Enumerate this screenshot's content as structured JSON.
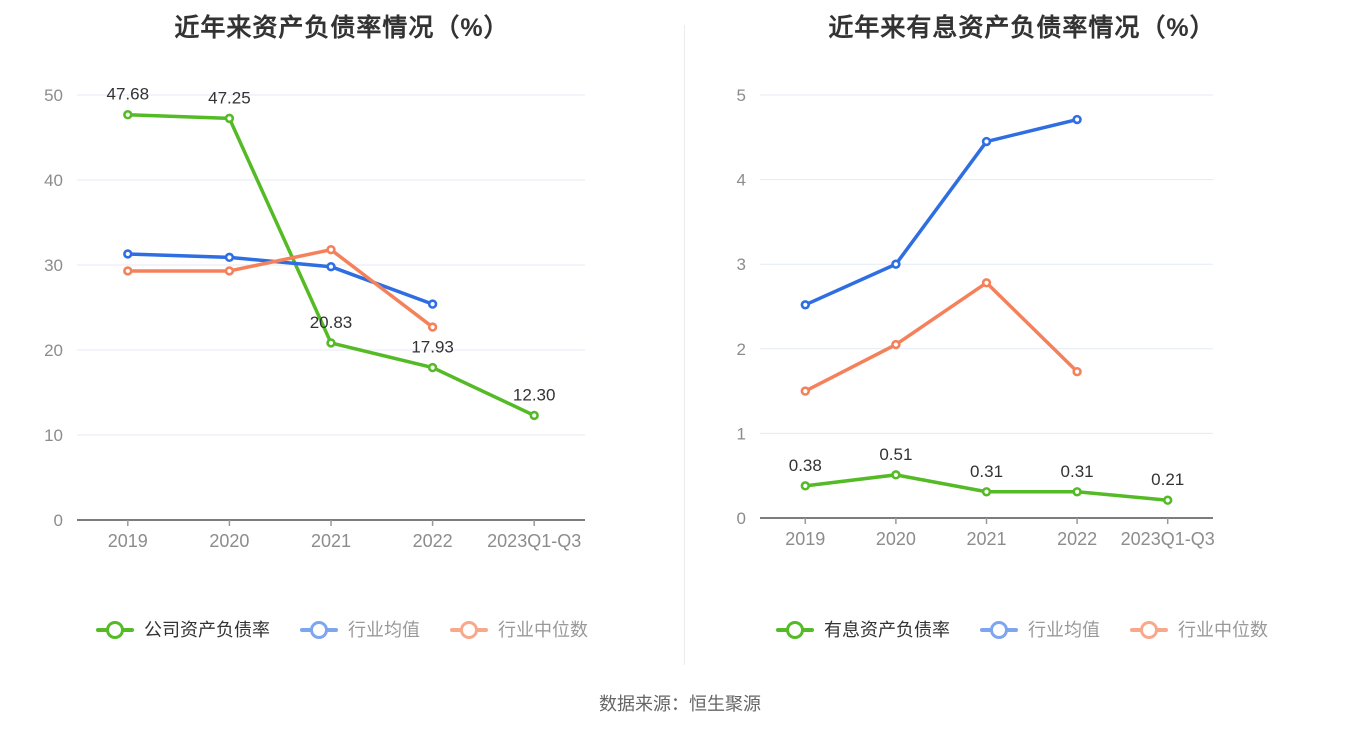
{
  "source": "数据来源：恒生聚源",
  "colors": {
    "green": "#54bb26",
    "blue": "#2e6ee2",
    "orange": "#f5815b",
    "legend_blue": "#7ea6f0",
    "legend_orange": "#f8a98c",
    "grid_line": "#e4eaf6",
    "axis_line": "#7d7d7d",
    "tick_mark": "#999999",
    "tick_label": "#8c8c8c",
    "title_text": "#333333",
    "data_label": "#333333",
    "legend_text_primary": "#333333",
    "legend_text_secondary": "#999999",
    "source_text": "#666666",
    "divider": "#ececec"
  },
  "chart_data": [
    {
      "type": "line",
      "title": "近年来资产负债率情况（%）",
      "categories": [
        "2019",
        "2020",
        "2021",
        "2022",
        "2023Q1-Q3"
      ],
      "xlabel": "",
      "ylabel": "",
      "ylim": [
        0,
        50
      ],
      "y_ticks": [
        0,
        10,
        20,
        30,
        40,
        50
      ],
      "grid": true,
      "legend_position": "bottom",
      "series": [
        {
          "id": "company-asset-liability-ratio",
          "name": "公司资产负债率",
          "values": [
            47.68,
            47.25,
            20.83,
            17.93,
            12.3
          ],
          "labels": [
            "47.68",
            "47.25",
            "20.83",
            "17.93",
            "12.30"
          ],
          "color_key": "green",
          "legend_color_key": "green",
          "legend_text_key": "legend_text_primary",
          "labeled": true
        },
        {
          "id": "industry-average",
          "name": "行业均值",
          "values": [
            31.3,
            30.9,
            29.8,
            25.4
          ],
          "labels": [],
          "color_key": "blue",
          "legend_color_key": "legend_blue",
          "legend_text_key": "legend_text_secondary",
          "labeled": false
        },
        {
          "id": "industry-median",
          "name": "行业中位数",
          "values": [
            29.3,
            29.3,
            31.8,
            22.7
          ],
          "labels": [],
          "color_key": "orange",
          "legend_color_key": "legend_orange",
          "legend_text_key": "legend_text_secondary",
          "labeled": false
        }
      ]
    },
    {
      "type": "line",
      "title": "近年来有息资产负债率情况（%）",
      "categories": [
        "2019",
        "2020",
        "2021",
        "2022",
        "2023Q1-Q3"
      ],
      "xlabel": "",
      "ylabel": "",
      "ylim": [
        0,
        5
      ],
      "y_ticks": [
        0,
        1,
        2,
        3,
        4,
        5
      ],
      "grid": true,
      "legend_position": "bottom",
      "series": [
        {
          "id": "interest-bearing-asset-liability-ratio",
          "name": "有息资产负债率",
          "values": [
            0.38,
            0.51,
            0.31,
            0.31,
            0.21
          ],
          "labels": [
            "0.38",
            "0.51",
            "0.31",
            "0.31",
            "0.21"
          ],
          "color_key": "green",
          "legend_color_key": "green",
          "legend_text_key": "legend_text_primary",
          "labeled": true
        },
        {
          "id": "industry-average",
          "name": "行业均值",
          "values": [
            2.52,
            3.0,
            4.45,
            4.71
          ],
          "labels": [],
          "color_key": "blue",
          "legend_color_key": "legend_blue",
          "legend_text_key": "legend_text_secondary",
          "labeled": false
        },
        {
          "id": "industry-median",
          "name": "行业中位数",
          "values": [
            1.5,
            2.05,
            2.78,
            1.73
          ],
          "labels": [],
          "color_key": "orange",
          "legend_color_key": "legend_orange",
          "legend_text_key": "legend_text_secondary",
          "labeled": false
        }
      ]
    }
  ]
}
